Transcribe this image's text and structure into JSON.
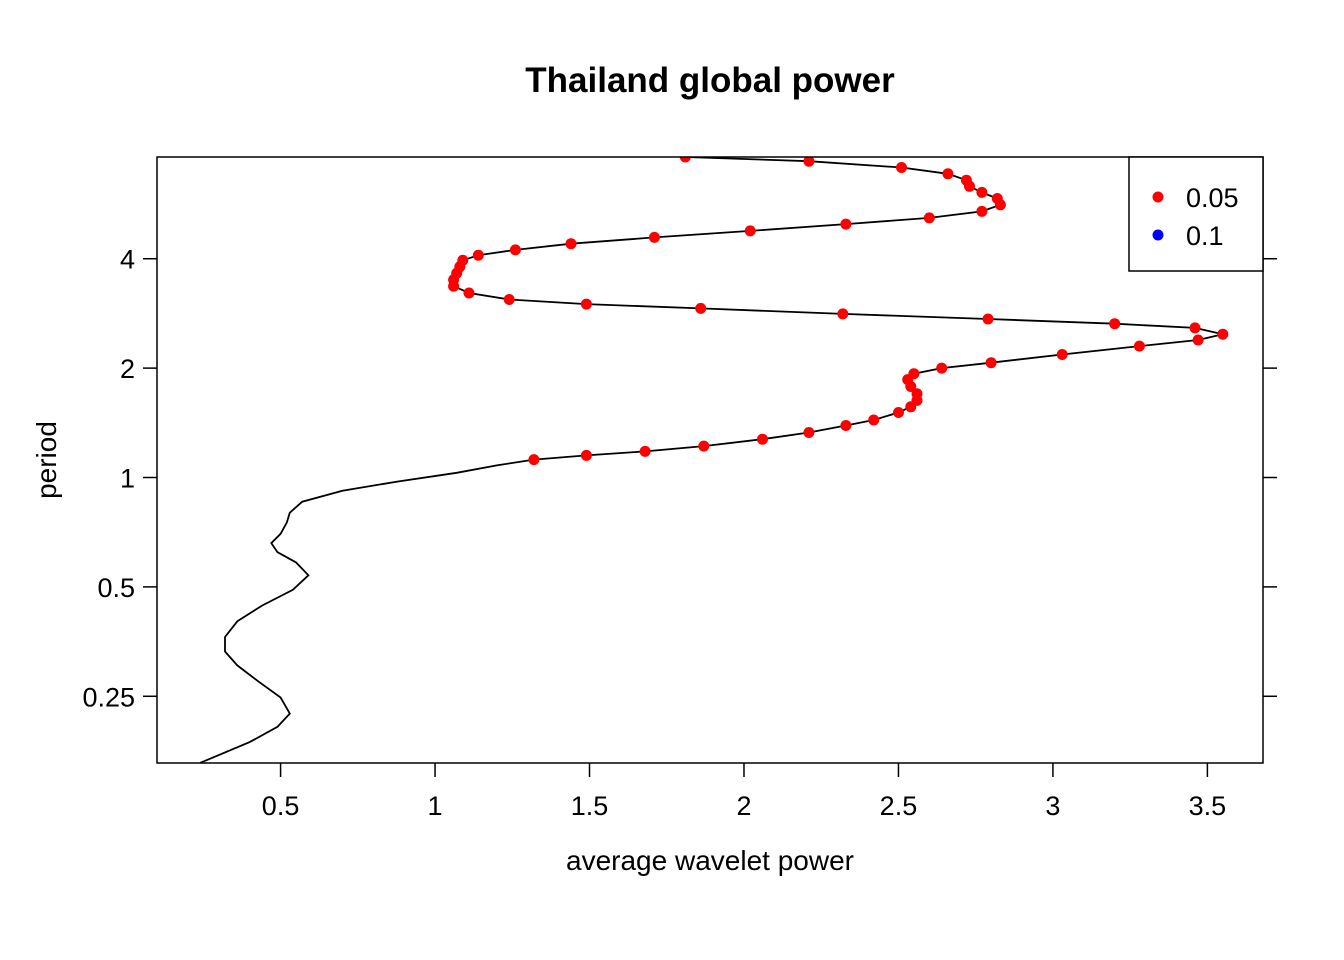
{
  "chart_data": {
    "type": "line",
    "title": "Thailand global power",
    "xlabel": "average wavelet power",
    "ylabel": "period",
    "xlim": [
      0.1,
      3.68
    ],
    "ylim_log2": [
      -2.61,
      2.93
    ],
    "y_scale": "log2",
    "x_ticks": [
      0.5,
      1,
      1.5,
      2,
      2.5,
      3,
      3.5
    ],
    "x_tick_labels": [
      "0.5",
      "1",
      "1.5",
      "2",
      "2.5",
      "3",
      "3.5"
    ],
    "y_ticks": [
      0.25,
      0.5,
      1,
      2,
      4
    ],
    "y_tick_labels": [
      "0.25",
      "0.5",
      "1",
      "2",
      "4"
    ],
    "legend": {
      "position": "top-right",
      "entries": [
        {
          "label": "0.05",
          "color": "#ff0000"
        },
        {
          "label": "0.1",
          "color": "#0000ff"
        }
      ]
    },
    "line_color": "#000000",
    "series": [
      {
        "points": [
          [
            0.24,
            0.164
          ],
          [
            0.4,
            0.187
          ],
          [
            0.49,
            0.206
          ],
          [
            0.53,
            0.224
          ],
          [
            0.5,
            0.248
          ],
          [
            0.43,
            0.274
          ],
          [
            0.36,
            0.304
          ],
          [
            0.32,
            0.332
          ],
          [
            0.32,
            0.364
          ],
          [
            0.36,
            0.402
          ],
          [
            0.44,
            0.444
          ],
          [
            0.54,
            0.491
          ],
          [
            0.59,
            0.538
          ],
          [
            0.55,
            0.584
          ],
          [
            0.49,
            0.623
          ],
          [
            0.47,
            0.66
          ],
          [
            0.5,
            0.7
          ],
          [
            0.52,
            0.752
          ],
          [
            0.53,
            0.8
          ],
          [
            0.57,
            0.858
          ],
          [
            0.7,
            0.92
          ],
          [
            0.88,
            0.975
          ],
          [
            1.07,
            1.03
          ],
          [
            1.2,
            1.08
          ],
          [
            1.32,
            1.12
          ],
          [
            1.49,
            1.15
          ],
          [
            1.68,
            1.18
          ],
          [
            1.87,
            1.22
          ],
          [
            2.06,
            1.275
          ],
          [
            2.21,
            1.33
          ],
          [
            2.33,
            1.39
          ],
          [
            2.42,
            1.44
          ],
          [
            2.5,
            1.51
          ],
          [
            2.54,
            1.565
          ],
          [
            2.56,
            1.63
          ],
          [
            2.56,
            1.7
          ],
          [
            2.54,
            1.78
          ],
          [
            2.53,
            1.86
          ],
          [
            2.55,
            1.93
          ],
          [
            2.64,
            2.0
          ],
          [
            2.8,
            2.07
          ],
          [
            3.03,
            2.18
          ],
          [
            3.28,
            2.3
          ],
          [
            3.47,
            2.39
          ],
          [
            3.55,
            2.48
          ],
          [
            3.46,
            2.58
          ],
          [
            3.2,
            2.65
          ],
          [
            2.79,
            2.73
          ],
          [
            2.32,
            2.82
          ],
          [
            1.86,
            2.92
          ],
          [
            1.49,
            3.0
          ],
          [
            1.24,
            3.09
          ],
          [
            1.11,
            3.22
          ],
          [
            1.06,
            3.36
          ],
          [
            1.06,
            3.5
          ],
          [
            1.07,
            3.65
          ],
          [
            1.08,
            3.8
          ],
          [
            1.09,
            3.96
          ],
          [
            1.14,
            4.09
          ],
          [
            1.26,
            4.23
          ],
          [
            1.44,
            4.4
          ],
          [
            1.71,
            4.58
          ],
          [
            2.02,
            4.77
          ],
          [
            2.33,
            4.98
          ],
          [
            2.6,
            5.18
          ],
          [
            2.77,
            5.4
          ],
          [
            2.83,
            5.63
          ],
          [
            2.82,
            5.86
          ],
          [
            2.77,
            6.09
          ],
          [
            2.73,
            6.33
          ],
          [
            2.72,
            6.58
          ],
          [
            2.66,
            6.85
          ],
          [
            2.51,
            7.13
          ],
          [
            2.21,
            7.42
          ],
          [
            1.81,
            7.62
          ]
        ],
        "significant_points": [
          [
            1.32,
            1.12
          ],
          [
            1.49,
            1.15
          ],
          [
            1.68,
            1.18
          ],
          [
            1.87,
            1.22
          ],
          [
            2.06,
            1.275
          ],
          [
            2.21,
            1.33
          ],
          [
            2.33,
            1.39
          ],
          [
            2.42,
            1.44
          ],
          [
            2.5,
            1.51
          ],
          [
            2.54,
            1.565
          ],
          [
            2.56,
            1.63
          ],
          [
            2.56,
            1.7
          ],
          [
            2.54,
            1.78
          ],
          [
            2.53,
            1.86
          ],
          [
            2.55,
            1.93
          ],
          [
            2.64,
            2.0
          ],
          [
            2.8,
            2.07
          ],
          [
            3.03,
            2.18
          ],
          [
            3.28,
            2.3
          ],
          [
            3.47,
            2.39
          ],
          [
            3.55,
            2.48
          ],
          [
            3.46,
            2.58
          ],
          [
            3.2,
            2.65
          ],
          [
            2.79,
            2.73
          ],
          [
            2.32,
            2.82
          ],
          [
            1.86,
            2.92
          ],
          [
            1.49,
            3.0
          ],
          [
            1.24,
            3.09
          ],
          [
            1.11,
            3.22
          ],
          [
            1.06,
            3.36
          ],
          [
            1.06,
            3.5
          ],
          [
            1.07,
            3.65
          ],
          [
            1.08,
            3.8
          ],
          [
            1.09,
            3.96
          ],
          [
            1.14,
            4.09
          ],
          [
            1.26,
            4.23
          ],
          [
            1.44,
            4.4
          ],
          [
            1.71,
            4.58
          ],
          [
            2.02,
            4.77
          ],
          [
            2.33,
            4.98
          ],
          [
            2.6,
            5.18
          ],
          [
            2.77,
            5.4
          ],
          [
            2.83,
            5.63
          ],
          [
            2.82,
            5.86
          ],
          [
            2.77,
            6.09
          ],
          [
            2.73,
            6.33
          ],
          [
            2.72,
            6.58
          ],
          [
            2.66,
            6.85
          ],
          [
            2.51,
            7.13
          ],
          [
            2.21,
            7.42
          ],
          [
            1.81,
            7.62
          ]
        ]
      }
    ]
  }
}
